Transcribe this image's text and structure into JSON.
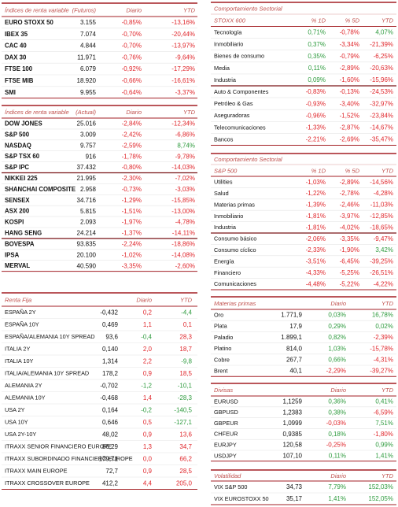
{
  "left": [
    {
      "header": [
        "Índices de renta variable",
        "(Futuros)",
        "Diario",
        "YTD"
      ],
      "colored_from": 2,
      "up_color": "#2e9b3e",
      "down_color": "#e0262b",
      "groups": [
        [
          [
            "EURO STOXX 50",
            "3.155",
            "-0,85%",
            "-13,16%"
          ],
          [
            "IBEX 35",
            "7.074",
            "-0,70%",
            "-20,44%"
          ],
          [
            "CAC 40",
            "4.844",
            "-0,70%",
            "-13,97%"
          ],
          [
            "DAX 30",
            "11.971",
            "-0,76%",
            "-9,64%"
          ],
          [
            "FTSE 100",
            "6.079",
            "-0,92%",
            "-17,29%"
          ],
          [
            "FTSE MIB",
            "18.920",
            "-0,66%",
            "-16,61%"
          ],
          [
            "SMI",
            "9.955",
            "-0,64%",
            "-3,37%"
          ]
        ]
      ]
    },
    {
      "header": [
        "Índices de renta variable",
        "(Actual)",
        "Diario",
        "YTD"
      ],
      "colored_from": 2,
      "up_color": "#2e9b3e",
      "down_color": "#e0262b",
      "groups": [
        [
          [
            "DOW JONES",
            "25.016",
            "-2,84%",
            "-12,34%"
          ],
          [
            "S&P 500",
            "3.009",
            "-2,42%",
            "-6,86%"
          ],
          [
            "NASDAQ",
            "9.757",
            "-2,59%",
            "8,74%"
          ],
          [
            "S&P TSX 60",
            "916",
            "-1,78%",
            "-9,78%"
          ],
          [
            "S&P IPC",
            "37.432",
            "-0,80%",
            "-14,03%"
          ]
        ],
        [
          [
            "NIKKEI 225",
            "21.995",
            "-2,30%",
            "-7,02%"
          ],
          [
            "SHANCHAI COMPOSITE",
            "2.958",
            "-0,73%",
            "-3,03%"
          ],
          [
            "SENSEX",
            "34.716",
            "-1,29%",
            "-15,85%"
          ],
          [
            "ASX 200",
            "5.815",
            "-1,51%",
            "-13,00%"
          ],
          [
            "KOSPI",
            "2.093",
            "-1,97%",
            "-4,78%"
          ],
          [
            "HANG SENG",
            "24.214",
            "-1,37%",
            "-14,11%"
          ]
        ],
        [
          [
            "BOVESPA",
            "93.835",
            "-2,24%",
            "-18,86%"
          ],
          [
            "IPSA",
            "20.100",
            "-1,02%",
            "-14,08%"
          ],
          [
            "MERVAL",
            "40.590",
            "-3,35%",
            "-2,60%"
          ]
        ]
      ]
    },
    {
      "header": [
        "Renta Fija",
        "Diario",
        "YTD"
      ],
      "colored_from": 2,
      "up_color": "#e0262b",
      "down_color": "#2e9b3e",
      "groups": [
        [
          [
            "ESPAÑA 2Y",
            "-0,432",
            "0,2",
            "-4,4"
          ],
          [
            "ESPAÑA 10Y",
            "0,469",
            "1,1",
            "0,1"
          ],
          [
            "ESPAÑA/ALEMANIA 10Y SPREAD",
            "93,6",
            "-0,4",
            "28,3"
          ],
          [
            "ITALIA 2Y",
            "0,140",
            "2,0",
            "18,7"
          ],
          [
            "ITALIA 10Y",
            "1,314",
            "2,2",
            "-9,8"
          ],
          [
            "ITALIA/ALEMANIA 10Y SPREAD",
            "178,2",
            "0,9",
            "18,5"
          ],
          [
            "ALEMANIA 2Y",
            "-0,702",
            "-1,2",
            "-10,1"
          ],
          [
            "ALEMANIA 10Y",
            "-0,468",
            "1,4",
            "-28,3"
          ],
          [
            "USA 2Y",
            "0,164",
            "-0,2",
            "-140,5"
          ],
          [
            "USA 10Y",
            "0,646",
            "0,5",
            "-127,1"
          ],
          [
            "USA 2Y-10Y",
            "48,02",
            "0,9",
            "13,6"
          ],
          [
            "ITRAXX SENIOR FINANCIERO EUROPE",
            "86,29",
            "1,3",
            "34,7"
          ],
          [
            "ITRAXX SUBORDINADO FINANCIERO EUROPE",
            "179,71",
            "0,0",
            "66,2"
          ],
          [
            "ITRAXX MAIN EUROPE",
            "72,7",
            "0,9",
            "28,5"
          ],
          [
            "ITRAXX CROSSOVER EUROPE",
            "412,2",
            "4,4",
            "205,0"
          ]
        ]
      ]
    }
  ],
  "right": [
    {
      "title": "Comportamiento Sectorial",
      "header": [
        "STOXX 600",
        "% 1D",
        "% 5D",
        "YTD"
      ],
      "colored_from": 1,
      "up_color": "#2e9b3e",
      "down_color": "#e0262b",
      "groups": [
        [
          [
            "Tecnología",
            "0,71%",
            "-0,78%",
            "4,07%"
          ],
          [
            "Inmobiliario",
            "0,37%",
            "-3,34%",
            "-21,39%"
          ],
          [
            "Bienes de consumo",
            "0,35%",
            "-0,79%",
            "-6,25%"
          ],
          [
            "Media",
            "0,11%",
            "-2,89%",
            "-20,63%"
          ],
          [
            "Industria",
            "0,09%",
            "-1,60%",
            "-15,96%"
          ]
        ],
        [
          [
            "Auto & Componentes",
            "-0,83%",
            "-0,13%",
            "-24,53%"
          ],
          [
            "Petróleo & Gas",
            "-0,93%",
            "-3,40%",
            "-32,97%"
          ],
          [
            "Aseguradoras",
            "-0,96%",
            "-1,52%",
            "-23,84%"
          ],
          [
            "Telecomunicaciones",
            "-1,33%",
            "-2,87%",
            "-14,67%"
          ],
          [
            "Bancos",
            "-2,21%",
            "-2,69%",
            "-35,47%"
          ]
        ]
      ]
    },
    {
      "title": "Comportamiento Sectorial",
      "header": [
        "S&P 500",
        "% 1D",
        "% 5D",
        "YTD"
      ],
      "colored_from": 1,
      "up_color": "#2e9b3e",
      "down_color": "#e0262b",
      "groups": [
        [
          [
            "Utilities",
            "-1,03%",
            "-2,89%",
            "-14,56%"
          ],
          [
            "Salud",
            "-1,22%",
            "-2,78%",
            "-4,28%"
          ],
          [
            "Materias primas",
            "-1,39%",
            "-2,46%",
            "-11,03%"
          ],
          [
            "Inmobiliario",
            "-1,81%",
            "-3,97%",
            "-12,85%"
          ],
          [
            "Industria",
            "-1,81%",
            "-4,02%",
            "-18,65%"
          ]
        ],
        [
          [
            "Consumo básico",
            "-2,06%",
            "-3,35%",
            "-9,47%"
          ],
          [
            "Consumo cíclico",
            "-2,33%",
            "-1,90%",
            "3,42%"
          ],
          [
            "Energía",
            "-3,51%",
            "-6,45%",
            "-39,25%"
          ],
          [
            "Financiero",
            "-4,33%",
            "-5,25%",
            "-26,51%"
          ],
          [
            "Comunicaciones",
            "-4,48%",
            "-5,22%",
            "-4,22%"
          ]
        ]
      ]
    },
    {
      "header": [
        "Materias primas",
        "Diario",
        "YTD"
      ],
      "colored_from": 2,
      "up_color": "#2e9b3e",
      "down_color": "#e0262b",
      "groups": [
        [
          [
            "Oro",
            "1.771,9",
            "0,03%",
            "16,78%"
          ],
          [
            "Plata",
            "17,9",
            "0,29%",
            "0,02%"
          ],
          [
            "Paladio",
            "1.899,1",
            "0,82%",
            "-2,39%"
          ],
          [
            "Platino",
            "814,0",
            "1,03%",
            "-15,78%"
          ],
          [
            "Cobre",
            "267,7",
            "0,66%",
            "-4,31%"
          ],
          [
            "Brent",
            "40,1",
            "-2,29%",
            "-39,27%"
          ]
        ]
      ]
    },
    {
      "header": [
        "Divisas",
        "Diario",
        "YTD"
      ],
      "colored_from": 2,
      "up_color": "#2e9b3e",
      "down_color": "#e0262b",
      "groups": [
        [
          [
            "EURUSD",
            "1,1259",
            "0,36%",
            "0,41%"
          ],
          [
            "GBPUSD",
            "1,2383",
            "0,38%",
            "-6,59%"
          ],
          [
            "GBPEUR",
            "1,0999",
            "-0,03%",
            "7,51%"
          ],
          [
            "CHFEUR",
            "0,9385",
            "0,18%",
            "-1,80%"
          ],
          [
            "EURJPY",
            "120,58",
            "-0,25%",
            "0,99%"
          ],
          [
            "USDJPY",
            "107,10",
            "0,11%",
            "1,41%"
          ]
        ]
      ]
    },
    {
      "header": [
        "Volatilidad",
        "Diario",
        "YTD"
      ],
      "colored_from": 2,
      "up_color": "#2e9b3e",
      "down_color": "#e0262b",
      "groups": [
        [
          [
            "VIX S&P 500",
            "34,73",
            "7,79%",
            "152,03%"
          ],
          [
            "VIX EUROSTOXX 50",
            "35,17",
            "1,41%",
            "152,05%"
          ]
        ]
      ]
    }
  ]
}
